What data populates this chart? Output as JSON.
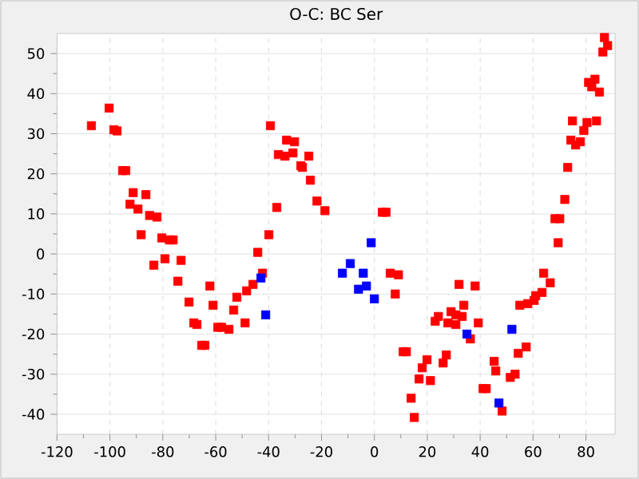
{
  "chart_data": {
    "type": "scatter",
    "title": "O-C: BC Ser",
    "xlim": [
      -120,
      91
    ],
    "ylim": [
      -45,
      55
    ],
    "xticks": [
      -120,
      -100,
      -80,
      -60,
      -40,
      -20,
      0,
      20,
      40,
      60,
      80
    ],
    "yticks": [
      -40,
      -30,
      -20,
      -10,
      0,
      10,
      20,
      30,
      40,
      50
    ],
    "grid": true,
    "marker": "square",
    "series": [
      {
        "color": "#ff0000",
        "x": [
          -107,
          -100.3,
          -98.5,
          -97.3,
          -95.2,
          -94,
          -91.2,
          -92.4,
          -89.4,
          -86.4,
          -88.2,
          -85,
          -82.2,
          -80.4,
          -77.5,
          -76.1,
          -83.4,
          -79.2,
          -73.1,
          -74.3,
          -70.1,
          -62.2,
          -61,
          -68.3,
          -67.1,
          -65.3,
          -64.1,
          -59.2,
          -57.8,
          -55,
          -53.2,
          -52,
          -48.9,
          -48.3,
          -45.9,
          -44.1,
          -42.3,
          -39.3,
          -39.9,
          -36.9,
          -36.3,
          -33.8,
          -33.2,
          -30.8,
          -30.2,
          -27.8,
          -27.2,
          -24.8,
          -24.2,
          -21.7,
          -18.7,
          3,
          4.4,
          72,
          68.3,
          70.1,
          69.5,
          73.1,
          74.3,
          76.1,
          77.9,
          74.9,
          79.2,
          80.4,
          84,
          85.1,
          81,
          82.2,
          83.4,
          86.4,
          88.2,
          87,
          6,
          9.1,
          7.9,
          32,
          38.1,
          33.8,
          29,
          24.2,
          23,
          30.8,
          33.2,
          27.8,
          30.8,
          39.3,
          36.3,
          10.9,
          12.1,
          19.9,
          27.2,
          26,
          18.1,
          16.9,
          21.2,
          13.9,
          15.1,
          41.1,
          42.3,
          45.3,
          45.9,
          48.3,
          51.4,
          53.2,
          54.4,
          57.4,
          55,
          58,
          60.4,
          61,
          63.4,
          64,
          66.5
        ],
        "values": [
          32,
          36.4,
          31,
          30.7,
          20.8,
          20.8,
          15.3,
          12.4,
          11.2,
          14.8,
          4.8,
          9.6,
          9.2,
          4,
          3.5,
          3.5,
          -2.8,
          -1.2,
          -1.6,
          -6.8,
          -12,
          -8,
          -12.8,
          -17.2,
          -17.6,
          -22.8,
          -22.8,
          -18.3,
          -18.3,
          -18.8,
          -14,
          -10.8,
          -17.2,
          -9.2,
          -7.6,
          0.4,
          -4.8,
          32,
          4.8,
          11.6,
          24.8,
          24.4,
          28.4,
          25.2,
          28,
          22,
          21.6,
          24.4,
          18.4,
          13.2,
          10.8,
          10.4,
          10.4,
          13.6,
          8.8,
          8.8,
          2.8,
          21.6,
          28.4,
          27.2,
          28,
          33.2,
          30.8,
          32.8,
          33.2,
          40.4,
          42.8,
          41.7,
          43.6,
          50.4,
          52,
          54,
          -4.8,
          -5.2,
          -10,
          -7.6,
          -8,
          -12.8,
          -14.4,
          -15.6,
          -16.8,
          -15.2,
          -15.6,
          -17.2,
          -17.6,
          -17.2,
          -21.2,
          -24.4,
          -24.4,
          -26.4,
          -25.2,
          -27.2,
          -28.4,
          -31.2,
          -31.6,
          -36,
          -40.8,
          -33.6,
          -33.6,
          -26.8,
          -29.2,
          -39.2,
          -30.8,
          -30,
          -24.8,
          -23.2,
          -12.8,
          -12.4,
          -11.6,
          -10.4,
          -9.6,
          -4.8,
          -7.2
        ]
      },
      {
        "color": "#0000ff",
        "x": [
          -42.9,
          -41.1,
          -1.2,
          -9.1,
          -12.1,
          -4.2,
          -6,
          -3,
          0,
          35,
          47.1,
          52
        ],
        "values": [
          -6,
          -15.2,
          2.8,
          -2.4,
          -4.8,
          -4.8,
          -8.8,
          -8,
          -11.2,
          -20,
          -37.2,
          -18.8
        ]
      }
    ]
  }
}
